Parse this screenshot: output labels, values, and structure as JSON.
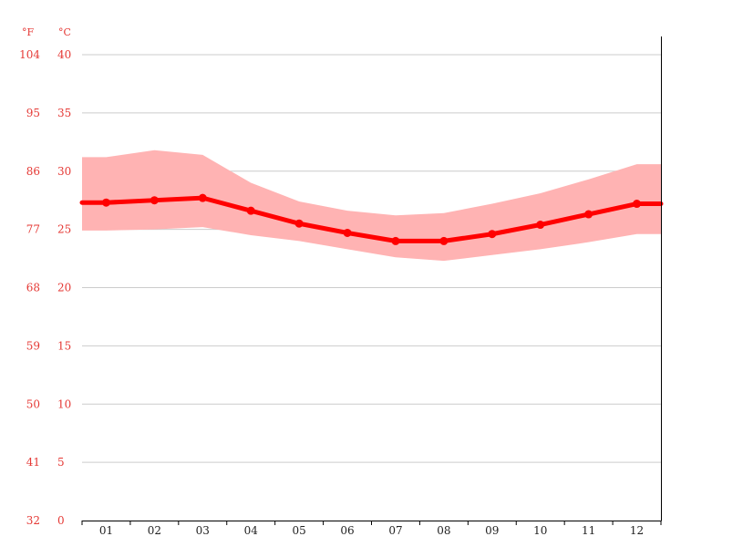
{
  "chart_data": {
    "type": "line",
    "title": "",
    "xlabel": "",
    "ylabel": "",
    "unit_f": "°F",
    "unit_c": "°C",
    "categories": [
      "01",
      "02",
      "03",
      "04",
      "05",
      "06",
      "07",
      "08",
      "09",
      "10",
      "11",
      "12"
    ],
    "ylim": [
      0,
      40
    ],
    "yticks_c": [
      "40",
      "35",
      "30",
      "25",
      "20",
      "15",
      "10",
      "5",
      "0"
    ],
    "yticks_f": [
      "104",
      "95",
      "86",
      "77",
      "68",
      "59",
      "50",
      "41",
      "32"
    ],
    "grid": true,
    "series": [
      {
        "values": [
          27.3,
          27.5,
          27.7,
          26.6,
          25.5,
          24.7,
          24.0,
          24.0,
          24.6,
          25.4,
          26.3,
          27.2
        ]
      }
    ],
    "band": {
      "max": [
        31.2,
        31.8,
        31.4,
        29.0,
        27.4,
        26.6,
        26.2,
        26.4,
        27.2,
        28.1,
        29.3,
        30.6
      ],
      "min": [
        24.9,
        25.0,
        25.2,
        24.5,
        24.0,
        23.3,
        22.6,
        22.3,
        22.8,
        23.3,
        23.9,
        24.6
      ]
    },
    "colors": {
      "line": "#ff0000",
      "band": "#ffb3b3",
      "grid": "#cccccc",
      "tick_text": "#e53935",
      "axis": "#000000"
    }
  }
}
